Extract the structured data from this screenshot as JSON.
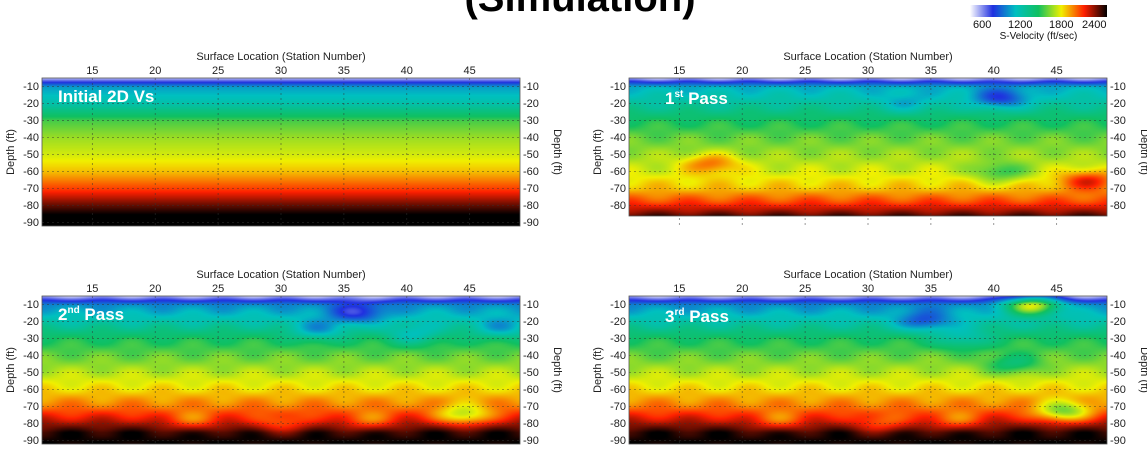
{
  "chart_data": {
    "type": "heatmap",
    "title": "(Simulation)",
    "colorbar": {
      "label": "S-Velocity (ft/sec)",
      "ticks": [
        600,
        1200,
        1800,
        2400
      ],
      "range": [
        0,
        2400
      ],
      "colors": [
        "#ffffff",
        "#2030e0",
        "#00c0c0",
        "#10c060",
        "#f0f000",
        "#ff2000",
        "#000000"
      ]
    },
    "x_axis": {
      "label": "Surface Location (Station Number)",
      "ticks": [
        15,
        20,
        25,
        30,
        35,
        40,
        45
      ],
      "range": [
        11,
        49
      ]
    },
    "y_axis": {
      "label": "Depth (ft)",
      "ticks": [
        "-10",
        "-20",
        "-30",
        "-40",
        "-50",
        "-60",
        "-70",
        "-80",
        "-90"
      ],
      "range": [
        -5,
        -92
      ]
    },
    "panels": [
      {
        "label": "Initial 2D Vs",
        "label_sup": "",
        "max_depth": 92,
        "layers": [
          [
            5,
            150
          ],
          [
            10,
            700
          ],
          [
            20,
            900
          ],
          [
            30,
            1300
          ],
          [
            40,
            1450
          ],
          [
            50,
            1550
          ],
          [
            60,
            1700
          ],
          [
            70,
            1950
          ],
          [
            78,
            2200
          ],
          [
            85,
            2400
          ],
          [
            92,
            2400
          ]
        ],
        "anomalies": []
      },
      {
        "label": "1",
        "label_sup": "st",
        "label_rest": " Pass",
        "max_depth": 86,
        "layers": [
          [
            5,
            150
          ],
          [
            10,
            750
          ],
          [
            20,
            950
          ],
          [
            30,
            1200
          ],
          [
            40,
            1350
          ],
          [
            50,
            1450
          ],
          [
            60,
            1550
          ],
          [
            70,
            1700
          ],
          [
            78,
            1950
          ],
          [
            84,
            2200
          ],
          [
            86,
            2300
          ]
        ],
        "anomalies": [
          {
            "x": 40.5,
            "depth": 17,
            "dv": -450
          },
          {
            "x": 17.5,
            "depth": 55,
            "dv": 350
          },
          {
            "x": 40.5,
            "depth": 60,
            "dv": -300
          },
          {
            "x": 33,
            "depth": 20,
            "dv": -200
          },
          {
            "x": 47.5,
            "depth": 65,
            "dv": 400
          }
        ]
      },
      {
        "label": "2",
        "label_sup": "nd",
        "label_rest": " Pass",
        "max_depth": 92,
        "layers": [
          [
            5,
            150
          ],
          [
            10,
            650
          ],
          [
            20,
            900
          ],
          [
            30,
            1200
          ],
          [
            40,
            1350
          ],
          [
            50,
            1500
          ],
          [
            60,
            1650
          ],
          [
            70,
            1850
          ],
          [
            78,
            2100
          ],
          [
            85,
            2350
          ],
          [
            92,
            2400
          ]
        ],
        "anomalies": [
          {
            "x": 36,
            "depth": 15,
            "dv": -400
          },
          {
            "x": 33,
            "depth": 25,
            "dv": -350
          },
          {
            "x": 40.5,
            "depth": 28,
            "dv": -300
          },
          {
            "x": 47.5,
            "depth": 24,
            "dv": -300
          },
          {
            "x": 44.5,
            "depth": 75,
            "dv": -500
          },
          {
            "x": 23,
            "depth": 78,
            "dv": -250
          },
          {
            "x": 30,
            "depth": 80,
            "dv": -250
          },
          {
            "x": 37,
            "depth": 78,
            "dv": -250
          }
        ]
      },
      {
        "label": "3",
        "label_sup": "rd",
        "label_rest": "  Pass",
        "max_depth": 92,
        "layers": [
          [
            5,
            150
          ],
          [
            10,
            650
          ],
          [
            20,
            900
          ],
          [
            30,
            1200
          ],
          [
            40,
            1350
          ],
          [
            50,
            1500
          ],
          [
            60,
            1650
          ],
          [
            70,
            1850
          ],
          [
            78,
            2100
          ],
          [
            85,
            2350
          ],
          [
            92,
            2400
          ]
        ],
        "anomalies": [
          {
            "x": 43,
            "depth": 10,
            "dv": 900
          },
          {
            "x": 34.5,
            "depth": 20,
            "dv": -400
          },
          {
            "x": 37.5,
            "depth": 30,
            "dv": -300
          },
          {
            "x": 41.5,
            "depth": 45,
            "dv": -300
          },
          {
            "x": 45.5,
            "depth": 73,
            "dv": -550
          },
          {
            "x": 23,
            "depth": 78,
            "dv": -250
          },
          {
            "x": 31,
            "depth": 80,
            "dv": -250
          },
          {
            "x": 37,
            "depth": 78,
            "dv": -250
          }
        ]
      }
    ]
  }
}
